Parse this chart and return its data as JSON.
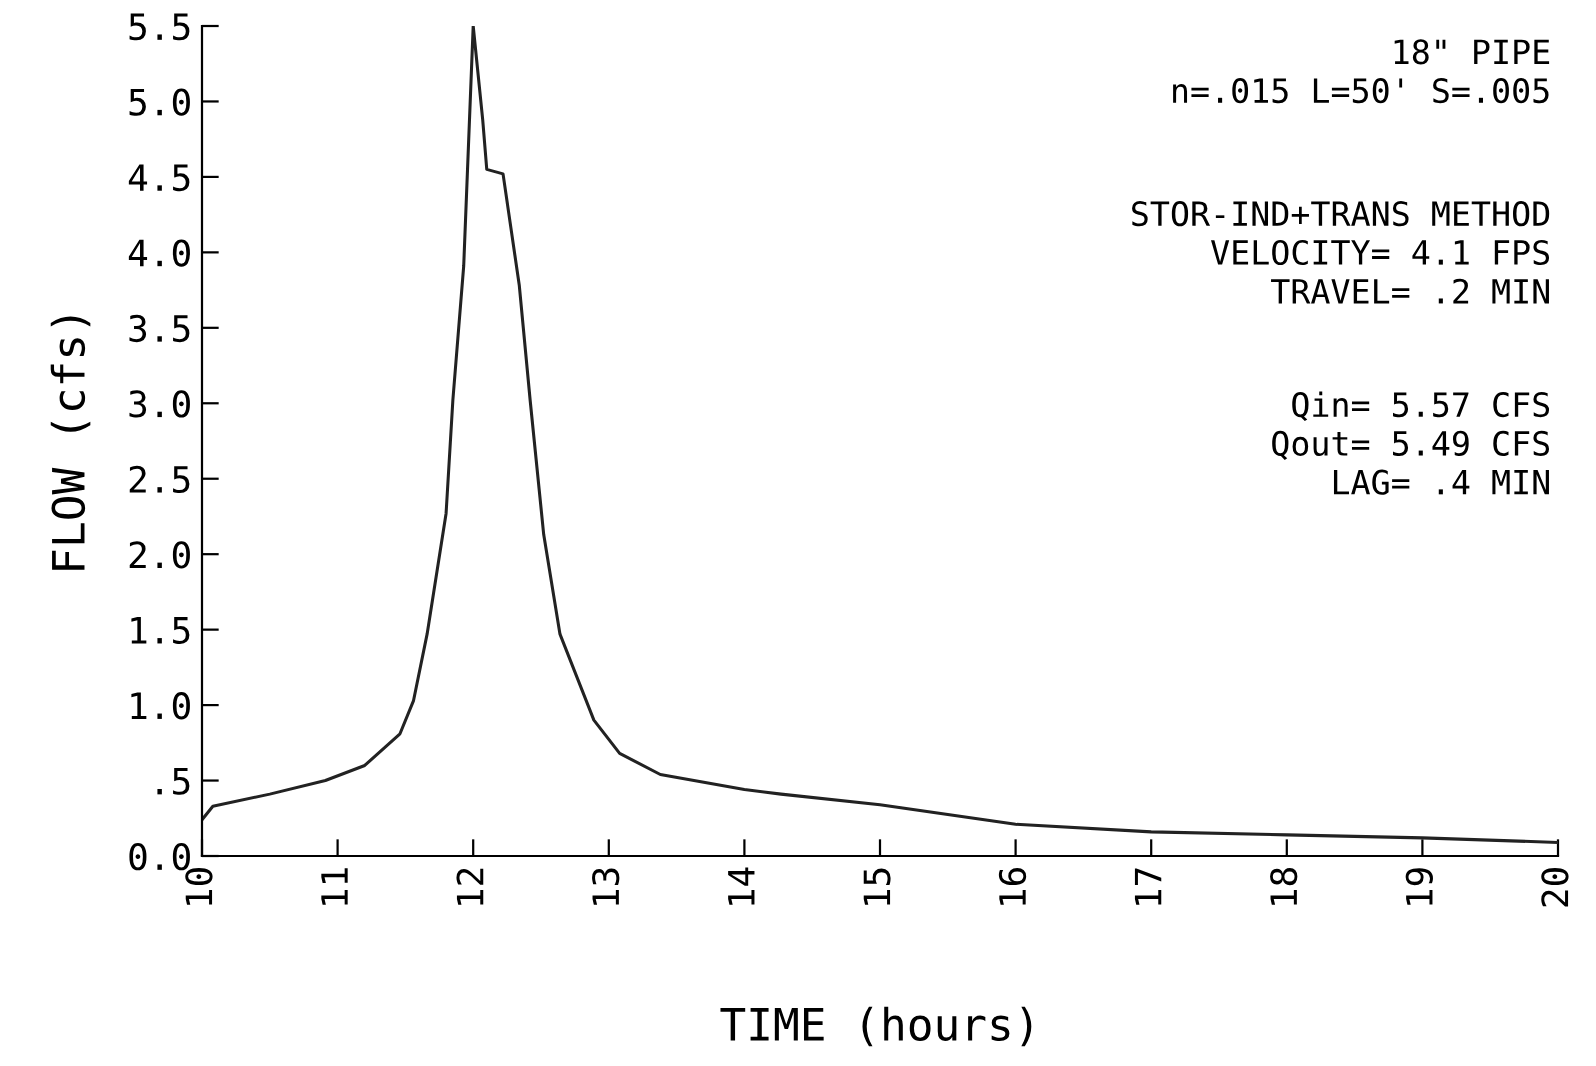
{
  "chart_data": {
    "type": "line",
    "xlabel": "TIME (hours)",
    "ylabel": "FLOW (cfs)",
    "x": [
      10.0,
      10.08,
      10.5,
      10.91,
      11.2,
      11.46,
      11.56,
      11.66,
      11.8,
      11.85,
      11.93,
      12.0,
      12.07,
      12.1,
      12.22,
      12.34,
      12.42,
      12.52,
      12.64,
      12.89,
      13.08,
      13.38,
      14.0,
      14.27,
      15.0,
      16.0,
      17.0,
      18.0,
      19.0,
      20.0
    ],
    "series": [
      {
        "color": "#222222",
        "values": [
          0.24,
          0.33,
          0.41,
          0.5,
          0.6,
          0.81,
          1.03,
          1.47,
          2.27,
          3.02,
          3.91,
          5.5,
          4.88,
          4.55,
          4.52,
          3.78,
          3.02,
          2.13,
          1.47,
          0.9,
          0.68,
          0.54,
          0.44,
          0.41,
          0.34,
          0.21,
          0.16,
          0.14,
          0.12,
          0.09
        ]
      }
    ],
    "xlim": [
      10,
      20
    ],
    "xticks": [
      10,
      11,
      12,
      13,
      14,
      15,
      16,
      17,
      18,
      19,
      20
    ],
    "ylim": [
      0,
      5.5
    ],
    "yticks": [
      {
        "value": 0,
        "label": "0.0"
      },
      {
        "value": 0.5,
        "label": ".5"
      },
      {
        "value": 1.0,
        "label": "1.0"
      },
      {
        "value": 1.5,
        "label": "1.5"
      },
      {
        "value": 2.0,
        "label": "2.0"
      },
      {
        "value": 2.5,
        "label": "2.5"
      },
      {
        "value": 3.0,
        "label": "3.0"
      },
      {
        "value": 3.5,
        "label": "3.5"
      },
      {
        "value": 4.0,
        "label": "4.0"
      },
      {
        "value": 4.5,
        "label": "4.5"
      },
      {
        "value": 5.0,
        "label": "5.0"
      },
      {
        "value": 5.5,
        "label": "5.5"
      }
    ],
    "annotations": [
      "18\" PIPE\nn=.015 L=50' S=.005",
      "STOR-IND+TRANS METHOD\nVELOCITY= 4.1 FPS\nTRAVEL= .2 MIN",
      "Qin= 5.57 CFS\nQout= 5.49 CFS\nLAG= .4 MIN"
    ],
    "grid": false,
    "marker": "none",
    "line_style": "solid"
  }
}
